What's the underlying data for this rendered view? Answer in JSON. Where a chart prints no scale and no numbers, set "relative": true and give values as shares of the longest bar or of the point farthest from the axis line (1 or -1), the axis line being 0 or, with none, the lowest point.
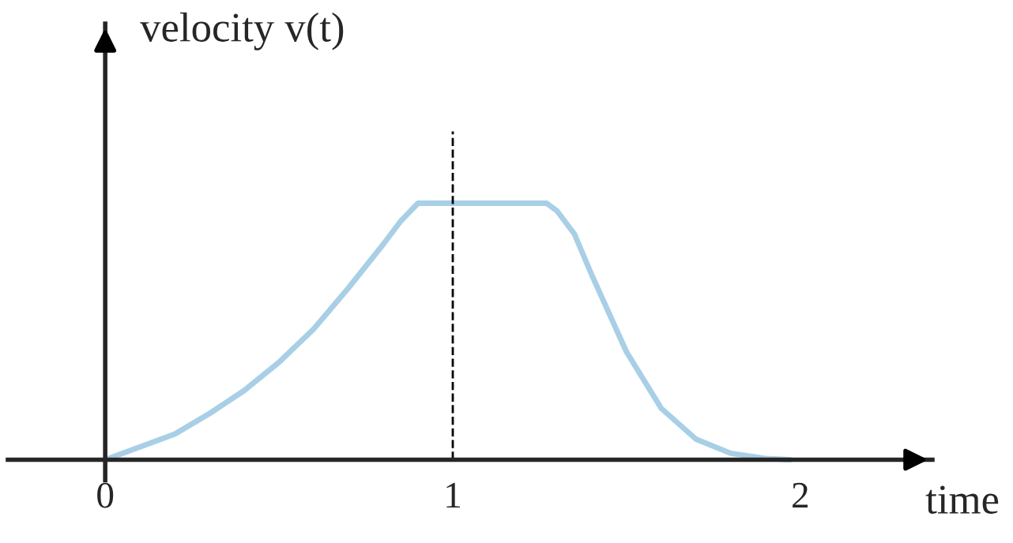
{
  "chart_data": {
    "type": "line",
    "xlabel": "time",
    "ylabel": "velocity v(t)",
    "relative": true,
    "tick_labels": "x",
    "grid": false,
    "legend": false,
    "marker": "none",
    "line_style": "solid",
    "xlim": [
      -0.28,
      2.38
    ],
    "xticks": [
      0,
      1,
      2
    ],
    "series": [
      {
        "color": "#a8cfe6",
        "x": [
          0,
          0.1,
          0.2,
          0.3,
          0.4,
          0.5,
          0.6,
          0.7,
          0.8,
          0.85,
          0.9,
          1.27,
          1.3,
          1.35,
          1.4,
          1.5,
          1.6,
          1.7,
          1.8,
          1.9,
          1.97
        ],
        "values": [
          0,
          0.05,
          0.1,
          0.18,
          0.27,
          0.38,
          0.51,
          0.67,
          0.84,
          0.93,
          1,
          1,
          0.97,
          0.88,
          0.72,
          0.42,
          0.2,
          0.08,
          0.025,
          0.005,
          0
        ]
      }
    ],
    "ref_lines": [
      {
        "axis": "x",
        "value": 1,
        "color": "#000000",
        "line_style": "dashed"
      }
    ]
  }
}
